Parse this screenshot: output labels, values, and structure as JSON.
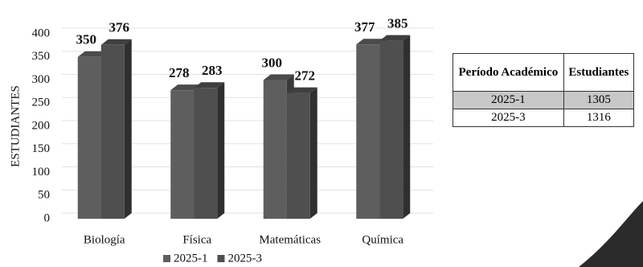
{
  "chart_data": {
    "type": "bar3d",
    "y_label": "ESTUDIANTES",
    "categories": [
      "Biología",
      "Física",
      "Matemáticas",
      "Química"
    ],
    "series": [
      {
        "name": "2025-1",
        "color": "#5e5e5e",
        "values": [
          350,
          278,
          300,
          377
        ]
      },
      {
        "name": "2025-3",
        "color": "#4f4f4f",
        "values": [
          376,
          283,
          272,
          385
        ]
      }
    ],
    "ylim": [
      0,
      400
    ],
    "yticks": [
      0,
      50,
      100,
      150,
      200,
      250,
      300,
      350,
      400
    ],
    "grid": true,
    "legend": "bottom"
  },
  "table": {
    "header": [
      "Período Académico",
      "Estudiantes"
    ],
    "rows": [
      [
        "2025-1",
        1305
      ],
      [
        "2025-3",
        1316
      ]
    ]
  }
}
